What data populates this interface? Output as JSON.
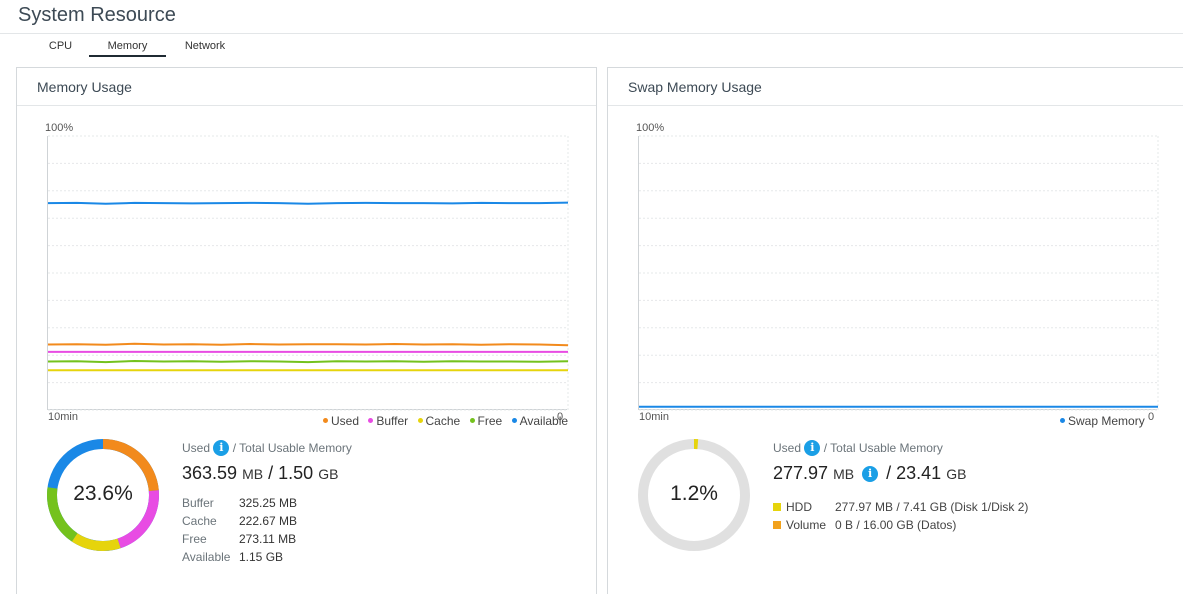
{
  "page": {
    "title": "System Resource"
  },
  "tabs": [
    {
      "label": "CPU",
      "active": false
    },
    {
      "label": "Memory",
      "active": true
    },
    {
      "label": "Network",
      "active": false
    }
  ],
  "memory_panel": {
    "title": "Memory Usage",
    "y_top_label": "100%",
    "x_left_label": "10min",
    "x_right_label": "0",
    "legend": [
      {
        "label": "Used",
        "color": "#f28a1c"
      },
      {
        "label": "Buffer",
        "color": "#e84ce3"
      },
      {
        "label": "Cache",
        "color": "#e6d40c"
      },
      {
        "label": "Free",
        "color": "#74c21d"
      },
      {
        "label": "Available",
        "color": "#1a88e6"
      }
    ],
    "used_label": "Used",
    "used_suffix": "/ Total Usable Memory",
    "used_value": "363.59",
    "used_unit": "MB",
    "separator": "/",
    "total_value": "1.50",
    "total_unit": "GB",
    "percent_text": "23.6%",
    "stats": [
      {
        "label": "Buffer",
        "value": "325.25 MB"
      },
      {
        "label": "Cache",
        "value": "222.67 MB"
      },
      {
        "label": "Free",
        "value": "273.11 MB"
      },
      {
        "label": "Available",
        "value": "1.15 GB"
      }
    ]
  },
  "swap_panel": {
    "title": "Swap Memory Usage",
    "y_top_label": "100%",
    "x_left_label": "10min",
    "x_right_label": "0",
    "legend": [
      {
        "label": "Swap Memory",
        "color": "#1a88e6"
      }
    ],
    "used_label": "Used",
    "used_suffix": "/ Total Usable Memory",
    "used_value": "277.97",
    "used_unit": "MB",
    "separator": "/",
    "total_value": "23.41",
    "total_unit": "GB",
    "percent_text": "1.2%",
    "rows": [
      {
        "label": "HDD",
        "value": "277.97 MB / 7.41 GB (Disk 1/Disk 2)",
        "color": "#e6d40c"
      },
      {
        "label": "Volume",
        "value": "0 B / 16.00 GB (Datos)",
        "color": "#f2a21c"
      }
    ]
  },
  "chart_data": [
    {
      "type": "line",
      "ylim": [
        0,
        100
      ],
      "x_range_label": [
        "10min",
        "0"
      ],
      "series": [
        {
          "name": "Available",
          "color": "#1a88e6",
          "values": [
            75.5,
            75.6,
            75.3,
            75.6,
            75.5,
            75.4,
            75.5,
            75.6,
            75.5,
            75.3,
            75.5,
            75.6,
            75.5,
            75.5,
            75.4,
            75.6,
            75.5,
            75.5,
            75.7
          ]
        },
        {
          "name": "Used",
          "color": "#f28a1c",
          "values": [
            23.9,
            24.0,
            23.8,
            24.2,
            23.9,
            24.0,
            23.8,
            24.1,
            23.9,
            24.0,
            24.0,
            23.9,
            24.1,
            23.9,
            24.0,
            23.8,
            24.0,
            23.9,
            23.6
          ]
        },
        {
          "name": "Buffer",
          "color": "#e84ce3",
          "values": [
            21.2,
            21.2,
            21.2,
            21.2,
            21.2,
            21.2,
            21.2,
            21.2,
            21.2,
            21.2,
            21.2,
            21.2,
            21.2,
            21.2,
            21.2,
            21.2,
            21.2,
            21.2,
            21.2
          ]
        },
        {
          "name": "Free",
          "color": "#74c21d",
          "values": [
            17.7,
            17.8,
            17.5,
            17.9,
            17.7,
            17.8,
            17.6,
            17.8,
            17.7,
            17.5,
            17.8,
            17.7,
            17.8,
            17.6,
            17.8,
            17.7,
            17.7,
            17.6,
            17.8
          ]
        },
        {
          "name": "Cache",
          "color": "#e6d40c",
          "values": [
            14.5,
            14.5,
            14.5,
            14.5,
            14.5,
            14.5,
            14.5,
            14.5,
            14.5,
            14.5,
            14.5,
            14.5,
            14.5,
            14.5,
            14.5,
            14.5,
            14.5,
            14.5,
            14.5
          ]
        }
      ]
    },
    {
      "type": "line",
      "ylim": [
        0,
        100
      ],
      "x_range_label": [
        "10min",
        "0"
      ],
      "series": [
        {
          "name": "Swap Memory",
          "color": "#1a88e6",
          "values": [
            1.2,
            1.2,
            1.2,
            1.2,
            1.2,
            1.2,
            1.2,
            1.2,
            1.2,
            1.2,
            1.2,
            1.2,
            1.2,
            1.2,
            1.2,
            1.2,
            1.2,
            1.2,
            1.2
          ]
        }
      ]
    }
  ],
  "donuts": {
    "memory": {
      "track_color": "#1a88e6",
      "segments": [
        {
          "name": "Used",
          "fraction": 0.236,
          "color": "#f28a1c"
        },
        {
          "name": "Buffer",
          "fraction": 0.212,
          "color": "#e84ce3"
        },
        {
          "name": "Cache",
          "fraction": 0.145,
          "color": "#e6d40c"
        },
        {
          "name": "Free",
          "fraction": 0.178,
          "color": "#74c21d"
        }
      ]
    },
    "swap": {
      "track_color": "#e0e0e0",
      "segments": [
        {
          "name": "HDD",
          "fraction": 0.012,
          "color": "#e6d40c"
        }
      ]
    }
  }
}
